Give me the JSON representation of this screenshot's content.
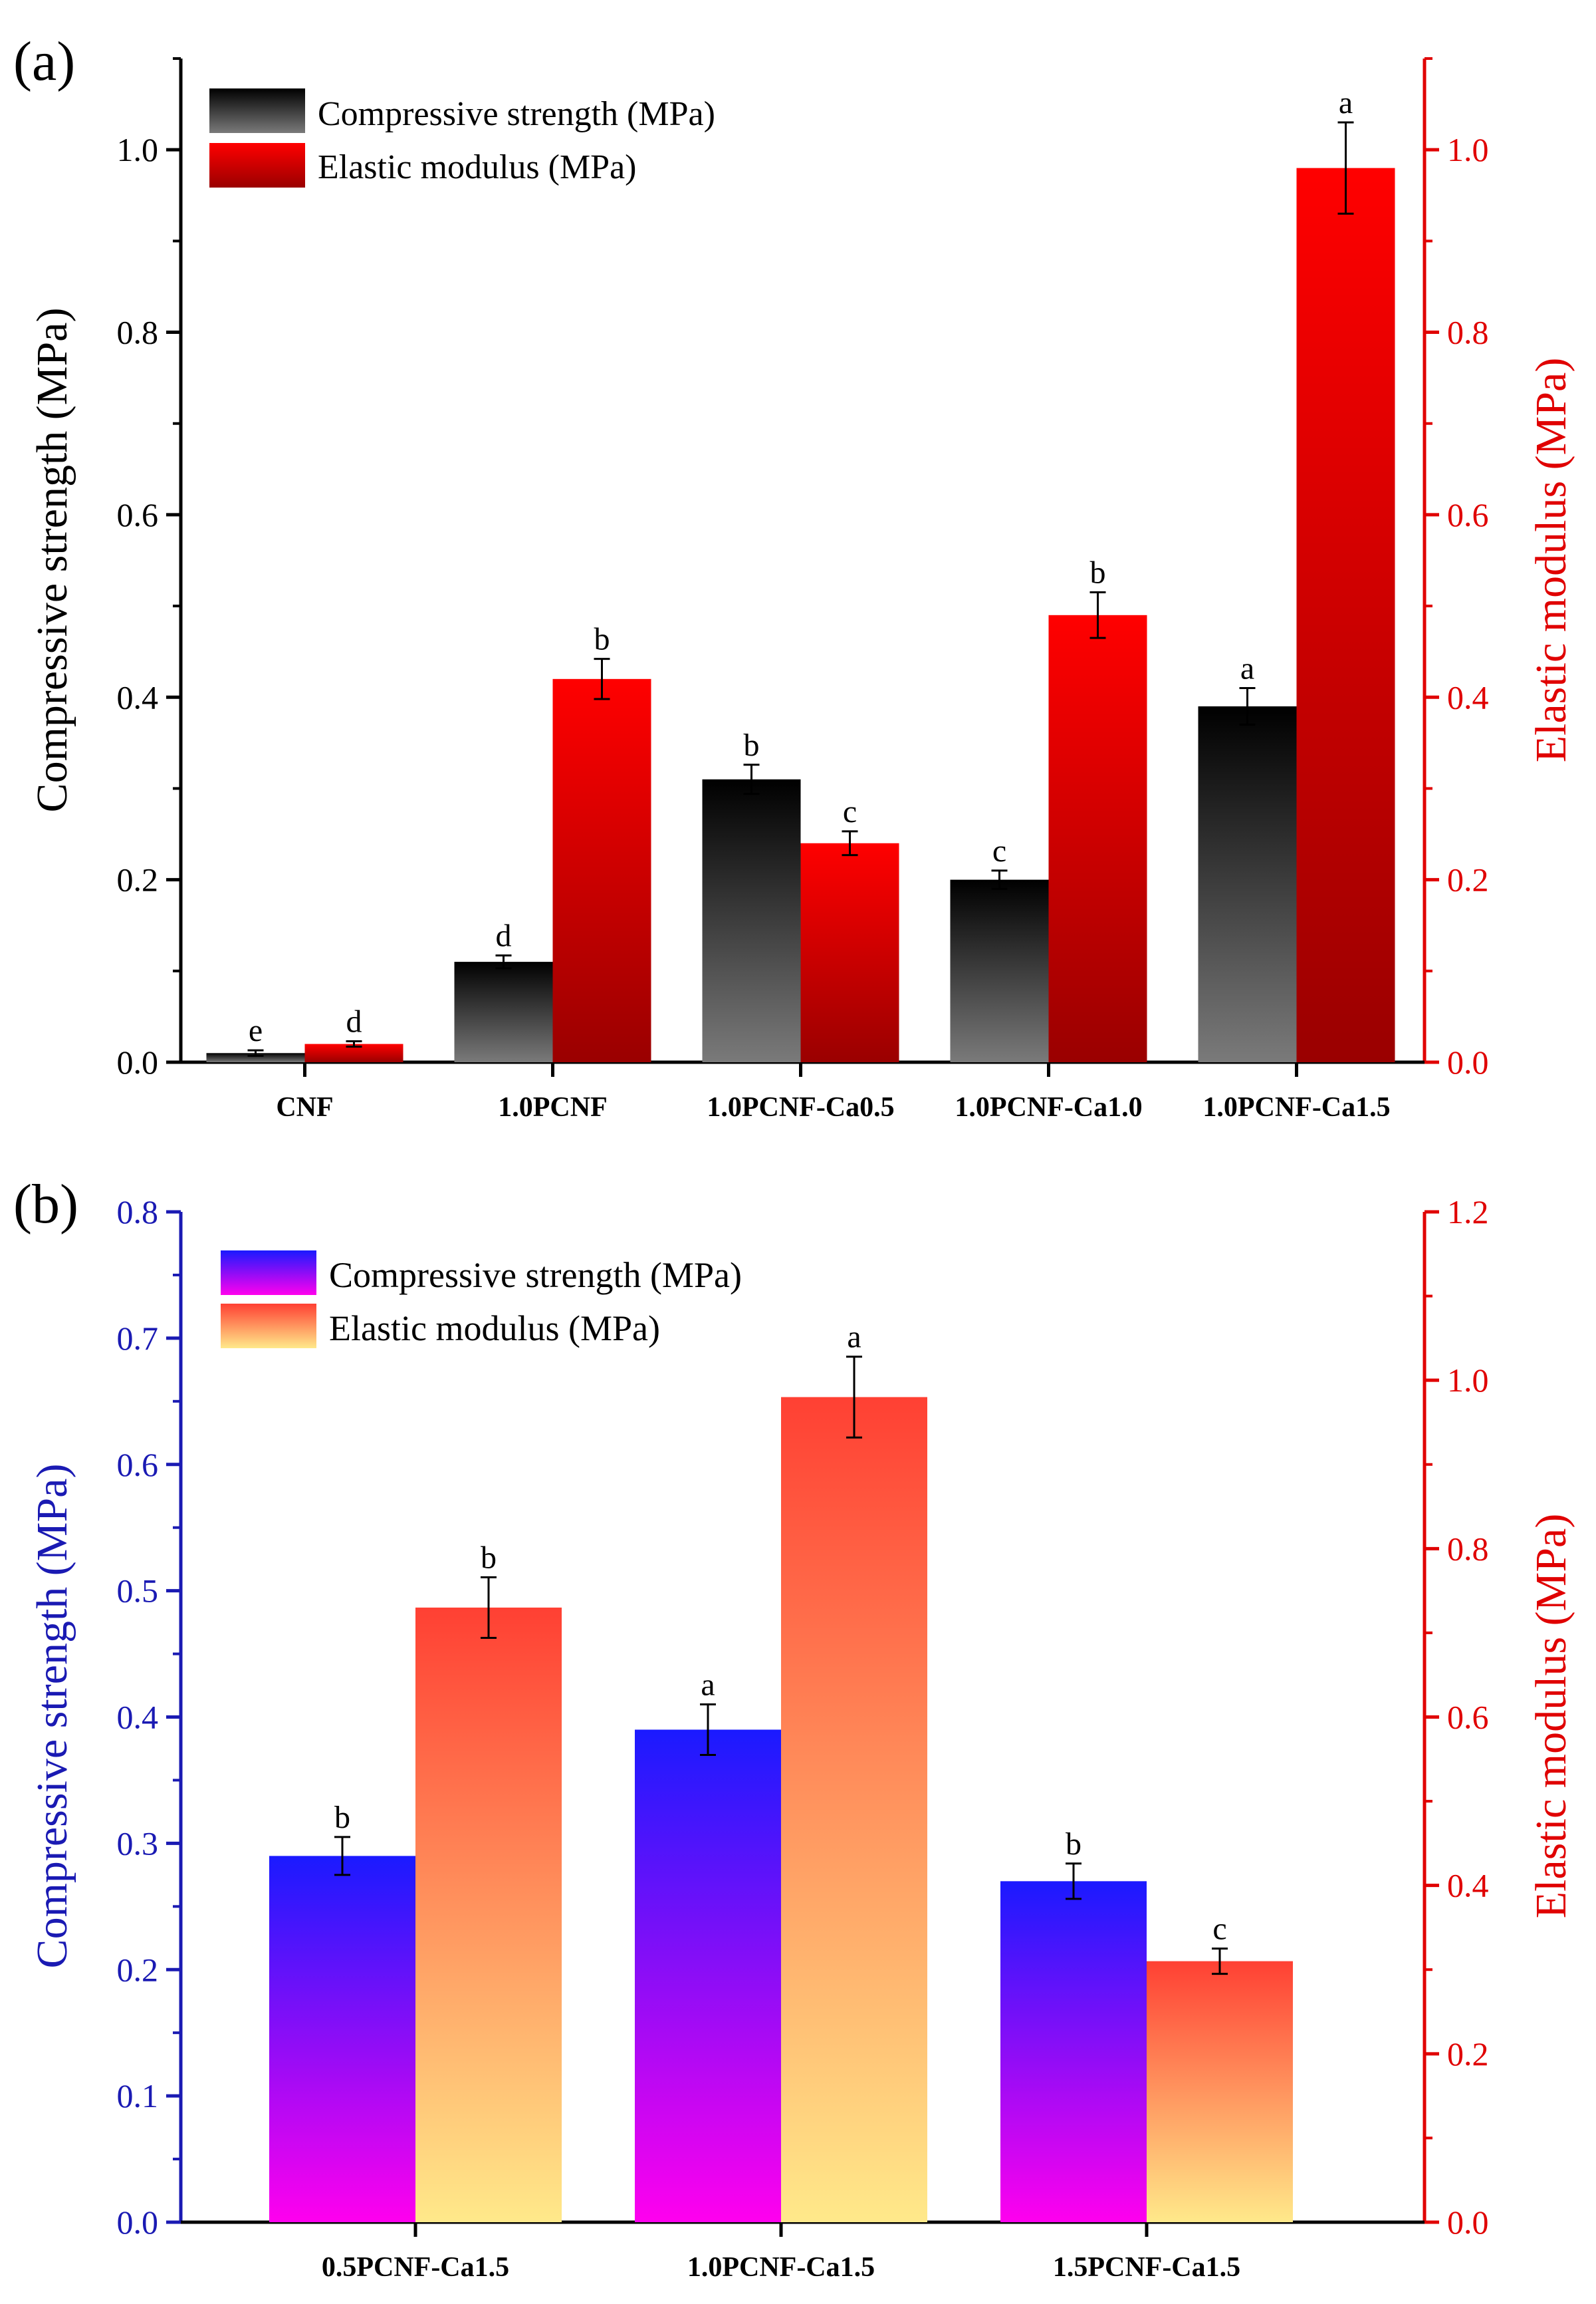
{
  "chart_data": [
    {
      "type": "bar",
      "panel_label": "(a)",
      "categories": [
        "CNF",
        "1.0PCNF",
        "1.0PCNF-Ca0.5",
        "1.0PCNF-Ca1.0",
        "1.0PCNF-Ca1.5"
      ],
      "series": [
        {
          "name": "Compressive strength (MPa)",
          "axis": "left",
          "values": [
            0.01,
            0.11,
            0.31,
            0.2,
            0.39
          ],
          "errors": [
            0.003,
            0.007,
            0.016,
            0.01,
            0.02
          ],
          "letters": [
            "e",
            "d",
            "b",
            "c",
            "a"
          ],
          "gradient": [
            "#000000",
            "#7a7a7a"
          ]
        },
        {
          "name": "Elastic modulus (MPa)",
          "axis": "right",
          "values": [
            0.02,
            0.42,
            0.24,
            0.49,
            0.98
          ],
          "errors": [
            0.003,
            0.022,
            0.013,
            0.025,
            0.05
          ],
          "letters": [
            "d",
            "b",
            "c",
            "b",
            "a"
          ],
          "gradient": [
            "#ff0000",
            "#9a0000"
          ]
        }
      ],
      "ylabel": "Compressive strength (MPa)",
      "y2label": "Elastic modulus (MPa)",
      "ylim": [
        0,
        1.1
      ],
      "y2lim": [
        0,
        1.1
      ],
      "yticks": [
        "0.0",
        "0.2",
        "0.4",
        "0.6",
        "0.8",
        "1.0"
      ],
      "y2ticks": [
        "0.0",
        "0.2",
        "0.4",
        "0.6",
        "0.8",
        "1.0"
      ],
      "left_axis_color": "#000000",
      "right_axis_color": "#e00000",
      "legend": "top-left"
    },
    {
      "type": "bar",
      "panel_label": "(b)",
      "categories": [
        "0.5PCNF-Ca1.5",
        "1.0PCNF-Ca1.5",
        "1.5PCNF-Ca1.5"
      ],
      "series": [
        {
          "name": "Compressive strength (MPa)",
          "axis": "left",
          "values": [
            0.29,
            0.39,
            0.27
          ],
          "errors": [
            0.015,
            0.02,
            0.014
          ],
          "letters": [
            "b",
            "a",
            "b"
          ],
          "gradient": [
            "#1a1aff",
            "#ff00ee"
          ]
        },
        {
          "name": "Elastic modulus (MPa)",
          "axis": "right",
          "values": [
            0.73,
            0.98,
            0.31
          ],
          "errors": [
            0.036,
            0.048,
            0.015
          ],
          "letters": [
            "b",
            "a",
            "c"
          ],
          "gradient": [
            "#ff4033",
            "#ffe98a"
          ]
        }
      ],
      "ylabel": "Compressive strength (MPa)",
      "y2label": "Elastic modulus (MPa)",
      "ylim": [
        0,
        0.8
      ],
      "y2lim": [
        0,
        1.2
      ],
      "yticks": [
        "0.0",
        "0.1",
        "0.2",
        "0.3",
        "0.4",
        "0.5",
        "0.6",
        "0.7",
        "0.8"
      ],
      "y2ticks": [
        "0.0",
        "0.2",
        "0.4",
        "0.6",
        "0.8",
        "1.0",
        "1.2"
      ],
      "left_axis_color": "#1a1ab3",
      "right_axis_color": "#e00000",
      "legend": "top-left"
    }
  ]
}
